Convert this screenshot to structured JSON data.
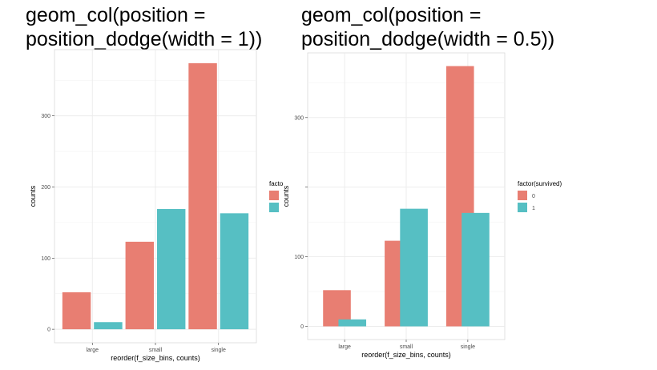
{
  "titles": {
    "left_line1": "geom_col(position =",
    "left_line2": "position_dodge(width = 1))",
    "right_line1": "geom_col(position =",
    "right_line2": "position_dodge(width = 0.5))"
  },
  "colors": {
    "series0": "#E87E72",
    "series1": "#56BFC3"
  },
  "chart_data": [
    {
      "type": "bar",
      "title": "geom_col(position = position_dodge(width = 1))",
      "categories": [
        "large",
        "small",
        "single"
      ],
      "series": [
        {
          "name": "0",
          "values": [
            52,
            123,
            374
          ]
        },
        {
          "name": "1",
          "values": [
            10,
            169,
            163
          ]
        }
      ],
      "dodge_width": 1,
      "xlabel": "reorder(f_size_bins, counts)",
      "ylabel": "counts",
      "yticks": [
        0,
        100,
        200,
        300
      ],
      "ylim": [
        -19,
        393
      ],
      "legend_title": "facto",
      "legend": "right",
      "grid": true
    },
    {
      "type": "bar",
      "title": "geom_col(position = position_dodge(width = 0.5))",
      "categories": [
        "large",
        "small",
        "single"
      ],
      "series": [
        {
          "name": "0",
          "values": [
            52,
            123,
            374
          ]
        },
        {
          "name": "1",
          "values": [
            10,
            169,
            163
          ]
        }
      ],
      "dodge_width": 0.5,
      "xlabel": "reorder(f_size_bins, counts)",
      "ylabel": "counts",
      "yticks": [
        0,
        100,
        200,
        300
      ],
      "ylim": [
        -19,
        393
      ],
      "legend_title": "factor(survived)",
      "legend": "right",
      "grid": true
    }
  ]
}
